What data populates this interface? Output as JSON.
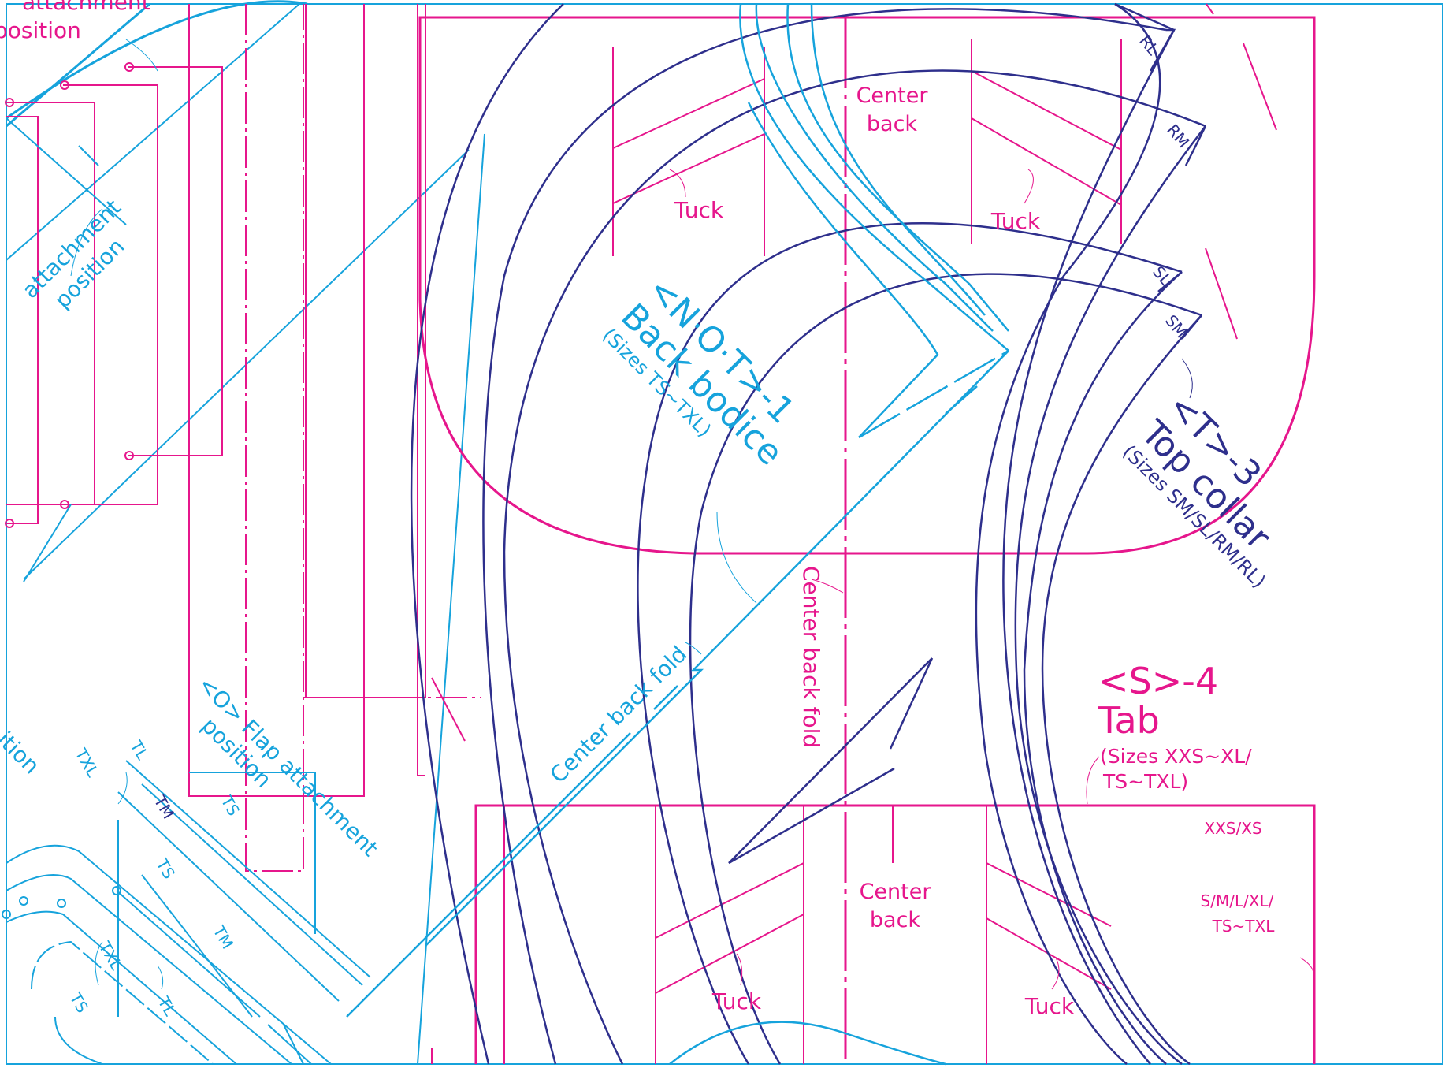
{
  "colors": {
    "magenta": "#e6168c",
    "cyan": "#16a3dc",
    "navy": "#2e2f8c",
    "background": "#ffffff"
  },
  "labels": {
    "tuck": "Tuck",
    "center_back_line1": "Center",
    "center_back_line2": "back",
    "center_back_fold": "Center back fold",
    "attachment_top_1": "attachment",
    "attachment_top_2": "position",
    "attachment_left_1": "attachment",
    "attachment_left_2": "position",
    "position_fragment": "ition",
    "flap_line1": "<O> Flap attachment",
    "flap_line2": "position"
  },
  "pieces": {
    "back_bodice": {
      "code": "<N·O·T>-1",
      "name": "Back bodice",
      "sizes": "(Sizes TS~TXL)"
    },
    "top_collar": {
      "code": "<T>-3",
      "name": "Top collar",
      "sizes": "(Sizes SM/SL/RM/RL)"
    },
    "tab": {
      "code": "<S>-4",
      "name": "Tab",
      "sizes_line1": "(Sizes XXS~XL/",
      "sizes_line2": "TS~TXL)"
    }
  },
  "collar_sizes": [
    "RL",
    "RM",
    "SL",
    "SM"
  ],
  "tab_sizes": {
    "a": "XXS/XS",
    "b1": "S/M/L/XL/",
    "b2": "TS~TXL"
  },
  "flap_sizes": [
    "TXL",
    "TL",
    "TM",
    "TS",
    "TS",
    "TM",
    "TXL",
    "TL",
    "TS"
  ]
}
